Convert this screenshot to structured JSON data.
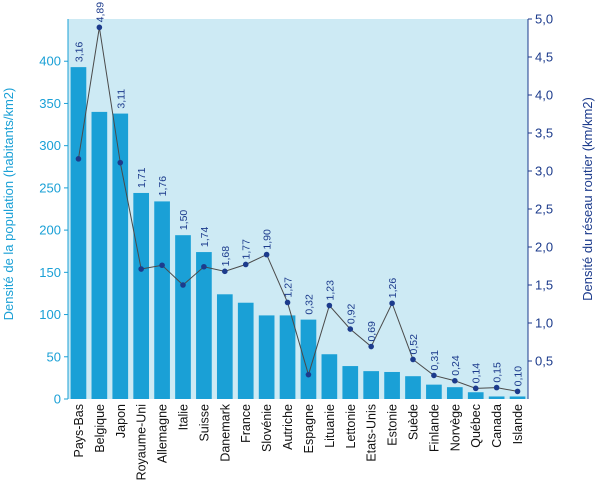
{
  "chart_data": {
    "type": "bar",
    "categories": [
      "Pays-Bas",
      "Belgique",
      "Japon",
      "Royaume-Uni",
      "Allemagne",
      "Italie",
      "Suisse",
      "Danemark",
      "France",
      "Slovénie",
      "Autriche",
      "Espagne",
      "Lituanie",
      "Lettonie",
      "Etats-Unis",
      "Estonie",
      "Suède",
      "Finlande",
      "Norvège",
      "Québec",
      "Canada",
      "Islande"
    ],
    "series": [
      {
        "name": "Densité de la population (habitants/km2)",
        "type": "bar",
        "axis": "left",
        "values": [
          393,
          340,
          338,
          244,
          234,
          194,
          174,
          124,
          114,
          99,
          99,
          94,
          53,
          39,
          33,
          32,
          27,
          17,
          14,
          8,
          3,
          3
        ]
      },
      {
        "name": "Densité du réseau routier (km/km2)",
        "type": "line",
        "axis": "right",
        "values": [
          3.16,
          4.89,
          3.11,
          1.71,
          1.76,
          1.5,
          1.74,
          1.68,
          1.77,
          1.9,
          1.27,
          0.32,
          1.23,
          0.92,
          0.69,
          1.26,
          0.52,
          0.31,
          0.24,
          0.14,
          0.15,
          0.1
        ],
        "labels": [
          "3,16",
          "4,89",
          "3,11",
          "1,71",
          "1,76",
          "1,50",
          "1,74",
          "1,68",
          "1,77",
          "1,90",
          "1,27",
          "0,32",
          "1,23",
          "0,92",
          "0,69",
          "1,26",
          "0,52",
          "0,31",
          "0,24",
          "0,14",
          "0,15",
          "0,10"
        ]
      }
    ],
    "ylabel": "Densité de la population (habitants/km2)",
    "y2label": "Densité du réseau routier (km/km2)",
    "ylim": [
      0,
      450
    ],
    "y2lim": [
      0,
      5.0
    ],
    "yticks": [
      "0",
      "50",
      "100",
      "150",
      "200",
      "250",
      "300",
      "350",
      "400"
    ],
    "y2ticks": [
      "0,5",
      "1,0",
      "1,5",
      "2,0",
      "2,5",
      "3,0",
      "3,5",
      "4,0",
      "4,5",
      "5,0"
    ],
    "colors": {
      "plot_bg": "#cdeaf4",
      "bar": "#1aa0d6",
      "line": "#4a4a4a",
      "marker": "#1c3b8c",
      "left_axis": "#1aa0d6",
      "right_axis": "#1c3b8c"
    },
    "grid": false
  }
}
